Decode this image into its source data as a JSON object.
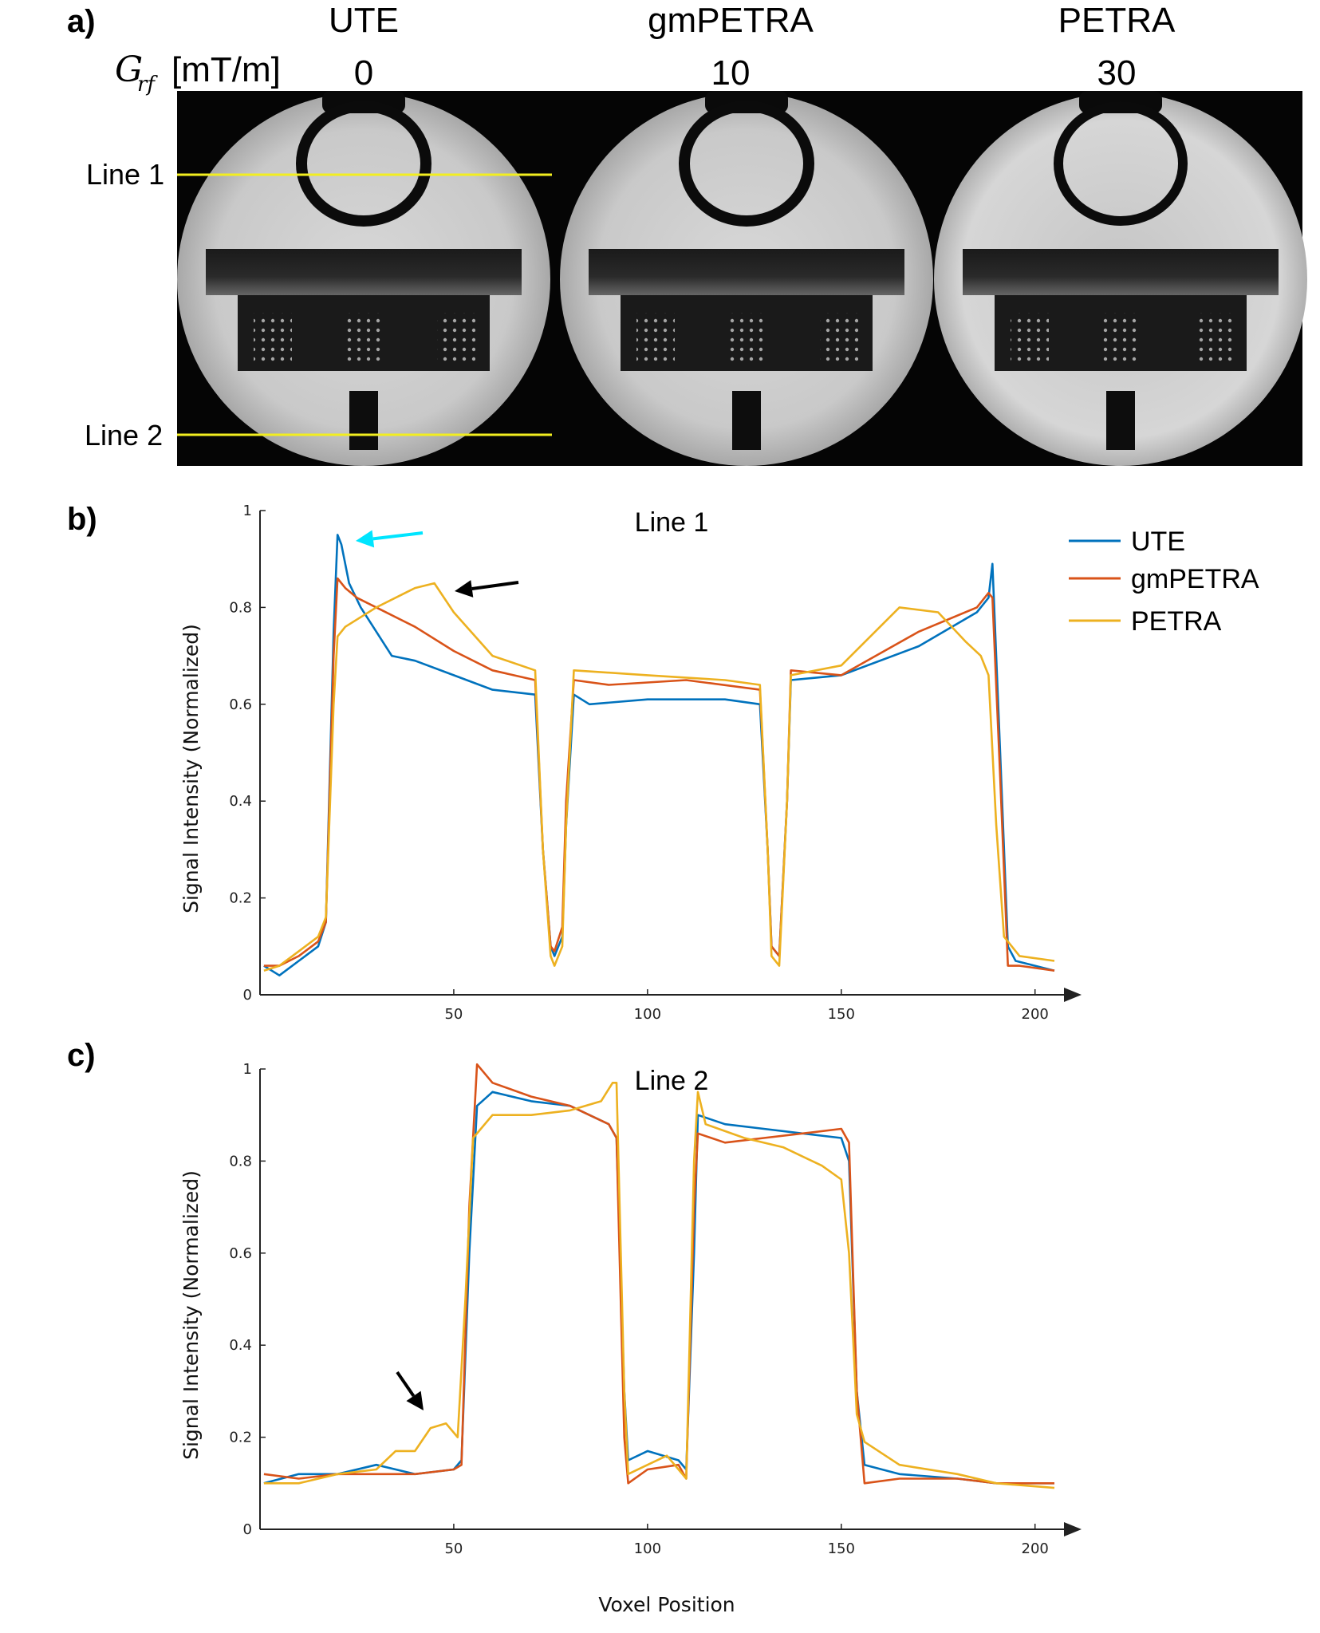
{
  "panel_labels": {
    "a": "a)",
    "b": "b)",
    "c": "c)"
  },
  "image_panel": {
    "grf_label_symbol": "G",
    "grf_label_subscript": "rf",
    "grf_label_unit": "[mT/m]",
    "columns": [
      {
        "name": "UTE",
        "grf_value": "0"
      },
      {
        "name": "gmPETRA",
        "grf_value": "10"
      },
      {
        "name": "PETRA",
        "grf_value": "30"
      }
    ],
    "line_labels": [
      "Line 1",
      "Line 2"
    ],
    "line_color": "#f2ee20"
  },
  "legend": [
    {
      "name": "UTE",
      "color": "#0072BD"
    },
    {
      "name": "gmPETRA",
      "color": "#D95319"
    },
    {
      "name": "PETRA",
      "color": "#EDB120"
    }
  ],
  "annotations": {
    "cyan_arrow_color": "#00e5ff",
    "black_arrow_color": "#000000"
  },
  "chart_data": [
    {
      "type": "line",
      "title": "Line 1",
      "xlabel": "",
      "ylabel": "Signal Intensity (Normalized)",
      "xlim": [
        0,
        205
      ],
      "ylim": [
        0,
        1
      ],
      "xticks": [
        50,
        100,
        150,
        200
      ],
      "yticks": [
        0,
        0.2,
        0.4,
        0.6,
        0.8,
        1
      ],
      "ytick_labels": [
        "0",
        "0.2",
        "0.4",
        "0.6",
        "0.8",
        "1"
      ],
      "series": [
        {
          "name": "UTE",
          "points": [
            [
              1,
              0.06
            ],
            [
              5,
              0.04
            ],
            [
              10,
              0.07
            ],
            [
              15,
              0.1
            ],
            [
              17,
              0.15
            ],
            [
              19,
              0.75
            ],
            [
              20,
              0.95
            ],
            [
              21,
              0.93
            ],
            [
              23,
              0.85
            ],
            [
              26,
              0.8
            ],
            [
              30,
              0.75
            ],
            [
              34,
              0.7
            ],
            [
              40,
              0.69
            ],
            [
              50,
              0.66
            ],
            [
              60,
              0.63
            ],
            [
              71,
              0.62
            ],
            [
              73,
              0.3
            ],
            [
              75,
              0.1
            ],
            [
              76,
              0.08
            ],
            [
              78,
              0.12
            ],
            [
              79,
              0.35
            ],
            [
              81,
              0.62
            ],
            [
              85,
              0.6
            ],
            [
              100,
              0.61
            ],
            [
              120,
              0.61
            ],
            [
              129,
              0.6
            ],
            [
              131,
              0.3
            ],
            [
              132,
              0.1
            ],
            [
              134,
              0.08
            ],
            [
              136,
              0.4
            ],
            [
              137,
              0.65
            ],
            [
              150,
              0.66
            ],
            [
              170,
              0.72
            ],
            [
              185,
              0.79
            ],
            [
              188,
              0.82
            ],
            [
              189,
              0.89
            ],
            [
              191,
              0.5
            ],
            [
              193,
              0.1
            ],
            [
              195,
              0.07
            ],
            [
              205,
              0.05
            ]
          ]
        },
        {
          "name": "gmPETRA",
          "points": [
            [
              1,
              0.06
            ],
            [
              5,
              0.06
            ],
            [
              10,
              0.08
            ],
            [
              15,
              0.11
            ],
            [
              17,
              0.15
            ],
            [
              19,
              0.7
            ],
            [
              20,
              0.86
            ],
            [
              22,
              0.84
            ],
            [
              25,
              0.82
            ],
            [
              30,
              0.8
            ],
            [
              40,
              0.76
            ],
            [
              50,
              0.71
            ],
            [
              60,
              0.67
            ],
            [
              71,
              0.65
            ],
            [
              73,
              0.3
            ],
            [
              75,
              0.1
            ],
            [
              76,
              0.09
            ],
            [
              78,
              0.14
            ],
            [
              79,
              0.4
            ],
            [
              81,
              0.65
            ],
            [
              90,
              0.64
            ],
            [
              110,
              0.65
            ],
            [
              129,
              0.63
            ],
            [
              131,
              0.3
            ],
            [
              132,
              0.1
            ],
            [
              134,
              0.08
            ],
            [
              136,
              0.4
            ],
            [
              137,
              0.67
            ],
            [
              150,
              0.66
            ],
            [
              170,
              0.75
            ],
            [
              185,
              0.8
            ],
            [
              188,
              0.83
            ],
            [
              189,
              0.82
            ],
            [
              191,
              0.45
            ],
            [
              193,
              0.06
            ],
            [
              196,
              0.06
            ],
            [
              205,
              0.05
            ]
          ]
        },
        {
          "name": "PETRA",
          "points": [
            [
              1,
              0.05
            ],
            [
              5,
              0.06
            ],
            [
              10,
              0.09
            ],
            [
              15,
              0.12
            ],
            [
              17,
              0.16
            ],
            [
              19,
              0.6
            ],
            [
              20,
              0.74
            ],
            [
              22,
              0.76
            ],
            [
              30,
              0.8
            ],
            [
              40,
              0.84
            ],
            [
              45,
              0.85
            ],
            [
              50,
              0.79
            ],
            [
              60,
              0.7
            ],
            [
              71,
              0.67
            ],
            [
              73,
              0.3
            ],
            [
              75,
              0.08
            ],
            [
              76,
              0.06
            ],
            [
              78,
              0.1
            ],
            [
              79,
              0.35
            ],
            [
              81,
              0.67
            ],
            [
              100,
              0.66
            ],
            [
              120,
              0.65
            ],
            [
              129,
              0.64
            ],
            [
              131,
              0.3
            ],
            [
              132,
              0.08
            ],
            [
              134,
              0.06
            ],
            [
              136,
              0.4
            ],
            [
              137,
              0.66
            ],
            [
              150,
              0.68
            ],
            [
              165,
              0.8
            ],
            [
              175,
              0.79
            ],
            [
              182,
              0.73
            ],
            [
              186,
              0.7
            ],
            [
              188,
              0.66
            ],
            [
              190,
              0.35
            ],
            [
              192,
              0.12
            ],
            [
              196,
              0.08
            ],
            [
              205,
              0.07
            ]
          ]
        }
      ]
    },
    {
      "type": "line",
      "title": "Line 2",
      "xlabel": "Voxel Position",
      "ylabel": "Signal Intensity (Normalized)",
      "xlim": [
        0,
        205
      ],
      "ylim": [
        0,
        1
      ],
      "xticks": [
        50,
        100,
        150,
        200
      ],
      "yticks": [
        0,
        0.2,
        0.4,
        0.6,
        0.8,
        1
      ],
      "ytick_labels": [
        "0",
        "0.2",
        "0.4",
        "0.6",
        "0.8",
        "1"
      ],
      "series": [
        {
          "name": "UTE",
          "points": [
            [
              1,
              0.1
            ],
            [
              10,
              0.12
            ],
            [
              20,
              0.12
            ],
            [
              30,
              0.14
            ],
            [
              40,
              0.12
            ],
            [
              50,
              0.13
            ],
            [
              52,
              0.15
            ],
            [
              54,
              0.6
            ],
            [
              56,
              0.92
            ],
            [
              60,
              0.95
            ],
            [
              70,
              0.93
            ],
            [
              80,
              0.92
            ],
            [
              90,
              0.88
            ],
            [
              92,
              0.85
            ],
            [
              94,
              0.3
            ],
            [
              95,
              0.15
            ],
            [
              100,
              0.17
            ],
            [
              108,
              0.15
            ],
            [
              110,
              0.13
            ],
            [
              112,
              0.6
            ],
            [
              113,
              0.9
            ],
            [
              120,
              0.88
            ],
            [
              130,
              0.87
            ],
            [
              140,
              0.86
            ],
            [
              150,
              0.85
            ],
            [
              152,
              0.8
            ],
            [
              154,
              0.3
            ],
            [
              156,
              0.14
            ],
            [
              165,
              0.12
            ],
            [
              180,
              0.11
            ],
            [
              190,
              0.1
            ],
            [
              205,
              0.1
            ]
          ]
        },
        {
          "name": "gmPETRA",
          "points": [
            [
              1,
              0.12
            ],
            [
              10,
              0.11
            ],
            [
              20,
              0.12
            ],
            [
              30,
              0.12
            ],
            [
              40,
              0.12
            ],
            [
              50,
              0.13
            ],
            [
              52,
              0.14
            ],
            [
              54,
              0.7
            ],
            [
              56,
              1.01
            ],
            [
              60,
              0.97
            ],
            [
              70,
              0.94
            ],
            [
              80,
              0.92
            ],
            [
              90,
              0.88
            ],
            [
              92,
              0.85
            ],
            [
              94,
              0.2
            ],
            [
              95,
              0.1
            ],
            [
              100,
              0.13
            ],
            [
              108,
              0.14
            ],
            [
              110,
              0.11
            ],
            [
              112,
              0.7
            ],
            [
              113,
              0.86
            ],
            [
              120,
              0.84
            ],
            [
              130,
              0.85
            ],
            [
              140,
              0.86
            ],
            [
              150,
              0.87
            ],
            [
              152,
              0.84
            ],
            [
              154,
              0.3
            ],
            [
              156,
              0.1
            ],
            [
              165,
              0.11
            ],
            [
              180,
              0.11
            ],
            [
              190,
              0.1
            ],
            [
              205,
              0.1
            ]
          ]
        },
        {
          "name": "PETRA",
          "points": [
            [
              1,
              0.1
            ],
            [
              10,
              0.1
            ],
            [
              20,
              0.12
            ],
            [
              30,
              0.13
            ],
            [
              35,
              0.17
            ],
            [
              40,
              0.17
            ],
            [
              44,
              0.22
            ],
            [
              48,
              0.23
            ],
            [
              51,
              0.2
            ],
            [
              53,
              0.5
            ],
            [
              55,
              0.85
            ],
            [
              60,
              0.9
            ],
            [
              70,
              0.9
            ],
            [
              80,
              0.91
            ],
            [
              88,
              0.93
            ],
            [
              91,
              0.97
            ],
            [
              92,
              0.97
            ],
            [
              94,
              0.3
            ],
            [
              95,
              0.12
            ],
            [
              100,
              0.14
            ],
            [
              105,
              0.16
            ],
            [
              110,
              0.11
            ],
            [
              112,
              0.8
            ],
            [
              113,
              0.95
            ],
            [
              115,
              0.88
            ],
            [
              125,
              0.85
            ],
            [
              135,
              0.83
            ],
            [
              145,
              0.79
            ],
            [
              150,
              0.76
            ],
            [
              152,
              0.6
            ],
            [
              154,
              0.25
            ],
            [
              156,
              0.19
            ],
            [
              165,
              0.14
            ],
            [
              180,
              0.12
            ],
            [
              190,
              0.1
            ],
            [
              205,
              0.09
            ]
          ]
        }
      ]
    }
  ]
}
